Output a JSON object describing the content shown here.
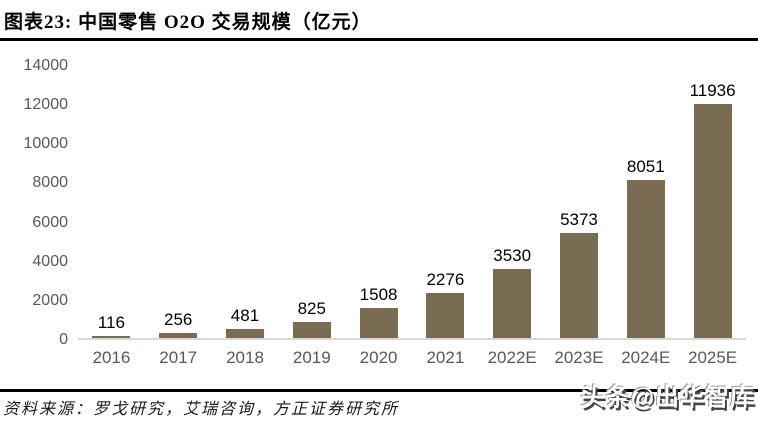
{
  "figure": {
    "title": "图表23: 中国零售 O2O 交易规模（亿元）",
    "source": "资料来源：罗戈研究，艾瑞咨询，方正证券研究所",
    "watermark": "头条@出华智库"
  },
  "chart_data": {
    "type": "bar",
    "title": "中国零售 O2O 交易规模（亿元）",
    "categories": [
      "2016",
      "2017",
      "2018",
      "2019",
      "2020",
      "2021",
      "2022E",
      "2023E",
      "2024E",
      "2025E"
    ],
    "values": [
      116,
      256,
      481,
      825,
      1508,
      2276,
      3530,
      5373,
      8051,
      11936
    ],
    "xlabel": "",
    "ylabel": "",
    "ylim": [
      0,
      14000
    ],
    "yticks": [
      0,
      2000,
      4000,
      6000,
      8000,
      10000,
      12000,
      14000
    ],
    "grid": false,
    "legend_position": "none",
    "value_labels": true,
    "colors": {
      "bar": "#7a6c52",
      "axis_label": "#595959",
      "baseline": "#d9d9d9",
      "value_label": "#000000"
    }
  }
}
